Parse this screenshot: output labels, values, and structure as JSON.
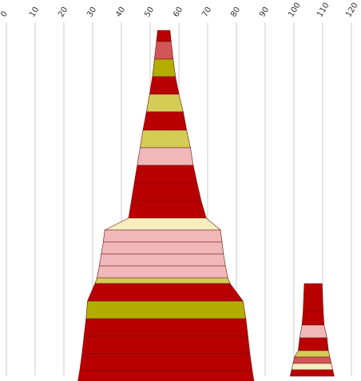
{
  "chart_data": {
    "type": "bar",
    "orientation": "stacked-trapezoid-columns",
    "title": "",
    "xlabel": "",
    "ylabel": "",
    "axis": {
      "min": 0,
      "max": 120,
      "ticks": [
        0,
        10,
        20,
        30,
        40,
        50,
        60,
        70,
        80,
        90,
        100,
        110,
        120
      ],
      "tick_labels": [
        "0",
        "10",
        "20",
        "30",
        "40",
        "50",
        "60",
        "70",
        "80",
        "90",
        "100",
        "110",
        "120"
      ],
      "position": "top",
      "grid": true
    },
    "legend": "none",
    "colors": {
      "red": "#b90000",
      "salmon": "#d35656",
      "olive": "#b3ad00",
      "yellow": "#d3cc55",
      "pink": "#f0b8b8",
      "cream": "#f5eebf"
    },
    "columns": [
      {
        "bands": [
          {
            "left": 52.2,
            "right": 57.3,
            "color": "red"
          },
          {
            "left": 51.5,
            "right": 58.0,
            "color": "salmon"
          },
          {
            "left": 50.8,
            "right": 58.8,
            "color": "olive"
          },
          {
            "left": 49.8,
            "right": 60.0,
            "color": "red"
          },
          {
            "left": 48.7,
            "right": 61.5,
            "color": "yellow"
          },
          {
            "left": 47.5,
            "right": 62.7,
            "color": "red"
          },
          {
            "left": 46.5,
            "right": 64.0,
            "color": "yellow"
          },
          {
            "left": 45.5,
            "right": 65.0,
            "color": "pink"
          },
          {
            "left": 44.5,
            "right": 66.3,
            "color": "red"
          },
          {
            "left": 43.5,
            "right": 67.7,
            "color": "red"
          },
          {
            "left": 42.5,
            "right": 69.5,
            "color": "red"
          },
          {
            "left": 34.2,
            "right": 74.5,
            "color": "cream"
          },
          {
            "left": 33.7,
            "right": 75.0,
            "color": "pink"
          },
          {
            "left": 33.0,
            "right": 75.5,
            "color": "pink"
          },
          {
            "left": 32.3,
            "right": 76.2,
            "color": "pink"
          },
          {
            "left": 31.5,
            "right": 77.0,
            "color": "pink"
          },
          {
            "left": 30.8,
            "right": 77.8,
            "color": "yellow"
          },
          {
            "left": 28.2,
            "right": 82.3,
            "color": "red"
          },
          {
            "left": 27.7,
            "right": 83.3,
            "color": "olive"
          },
          {
            "left": 27.0,
            "right": 84.0,
            "color": "red"
          },
          {
            "left": 26.3,
            "right": 84.7,
            "color": "red"
          },
          {
            "left": 25.5,
            "right": 85.5,
            "color": "red"
          },
          {
            "left": 24.5,
            "right": 86.5,
            "color": "red"
          }
        ]
      },
      {
        "bands": [
          {
            "left": 103.2,
            "right": 110.2,
            "color": "red"
          },
          {
            "left": 102.8,
            "right": 110.5,
            "color": "red"
          },
          {
            "left": 102.0,
            "right": 111.5,
            "color": "pink"
          },
          {
            "left": 101.5,
            "right": 112.0,
            "color": "red"
          },
          {
            "left": 100.2,
            "right": 112.5,
            "color": "yellow"
          },
          {
            "left": 99.7,
            "right": 113.0,
            "color": "salmon"
          },
          {
            "left": 99.2,
            "right": 113.5,
            "color": "cream"
          },
          {
            "left": 98.7,
            "right": 114.0,
            "color": "red"
          }
        ]
      }
    ]
  }
}
